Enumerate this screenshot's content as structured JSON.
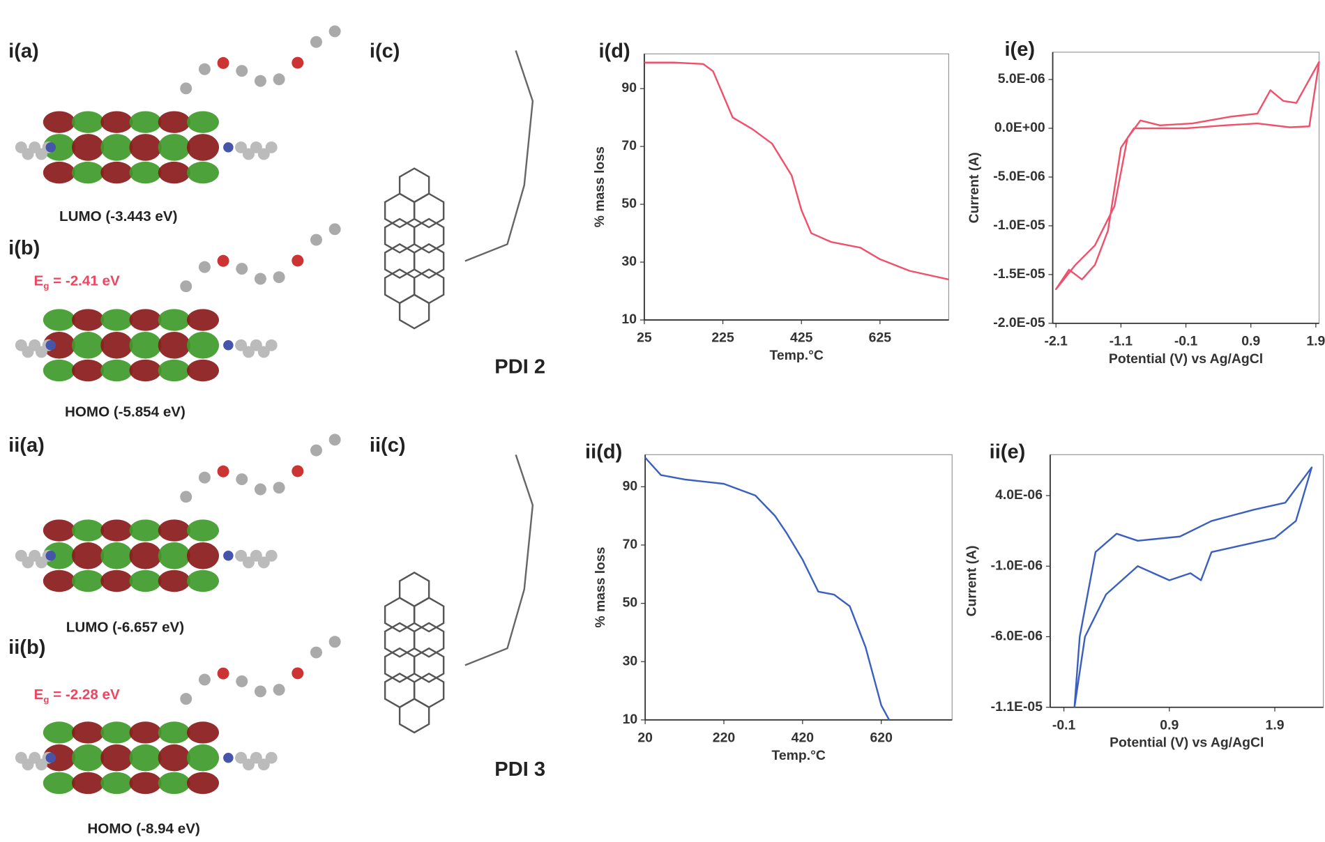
{
  "panels": {
    "ia": "i(a)",
    "ib": "i(b)",
    "ic": "i(c)",
    "iia": "ii(a)",
    "iib": "ii(b)",
    "iic": "ii(c)",
    "i_lumo": "LUMO (-3.443 eV)",
    "i_homo": "HOMO (-5.854 eV)",
    "ii_lumo": "LUMO (-6.657 eV)",
    "ii_homo": "HOMO (-8.94 eV)",
    "i_eg": {
      "symbol": "E",
      "sub": "g",
      "text": " = -2.41 eV"
    },
    "ii_eg": {
      "symbol": "E",
      "sub": "g",
      "text": " = -2.28 eV"
    },
    "pdi2": "PDI 2",
    "pdi3": "PDI 3"
  },
  "chart_data": [
    {
      "type": "line",
      "title": "i(d)",
      "x_label": "Temp.°C",
      "y_label": "% mass loss",
      "xlim": [
        25,
        800
      ],
      "xticks": [
        25,
        225,
        425,
        625
      ],
      "ylim": [
        10,
        102
      ],
      "yticks": [
        10,
        30,
        50,
        70,
        90
      ],
      "series": [
        {
          "color": "#f0506a",
          "x": [
            25,
            100,
            175,
            200,
            225,
            250,
            300,
            350,
            400,
            425,
            450,
            500,
            575,
            625,
            700,
            800
          ],
          "values": [
            99,
            99,
            98.5,
            96,
            88,
            80,
            76,
            71,
            60,
            48,
            40,
            37,
            35,
            31,
            27,
            24
          ]
        }
      ]
    },
    {
      "type": "line",
      "title": "i(e)",
      "x_label": "Potential (V) vs Ag/AgCl",
      "y_label": "Current (A)",
      "xlim": [
        -2.15,
        1.95
      ],
      "xticks": [
        -2.1,
        -1.1,
        -0.1,
        0.9,
        1.9
      ],
      "ylim": [
        -2e-05,
        7.8e-06
      ],
      "yticks": [
        {
          "value": 5e-06,
          "label": "5.0E-06"
        },
        {
          "value": 0,
          "label": "0.0E+00"
        },
        {
          "value": -5e-06,
          "label": "-5.0E-06"
        },
        {
          "value": -1e-05,
          "label": "-1.0E-05"
        },
        {
          "value": -1.5e-05,
          "label": "-1.5E-05"
        },
        {
          "value": -2e-05,
          "label": "-2.0E-05"
        }
      ],
      "series": [
        {
          "color": "#f0506a",
          "x": [
            -0.1,
            0.5,
            1.0,
            1.5,
            1.8,
            1.95,
            1.6,
            1.4,
            1.2,
            1.0,
            0.6,
            0,
            -0.5,
            -0.8,
            -1.0,
            -1.2,
            -1.5,
            -1.8,
            -2.1,
            -1.9,
            -1.7,
            -1.5,
            -1.3,
            -1.1,
            -0.9,
            -0.1
          ],
          "values": [
            0,
            3e-07,
            5e-07,
            1e-07,
            2e-07,
            6.8e-06,
            2.6e-06,
            2.8e-06,
            3.9e-06,
            1.5e-06,
            1.2e-06,
            5e-07,
            3e-07,
            8e-07,
            -1e-06,
            -8e-06,
            -1.2e-05,
            -1.4e-05,
            -1.65e-05,
            -1.45e-05,
            -1.55e-05,
            -1.4e-05,
            -1.05e-05,
            -2e-06,
            0,
            0
          ]
        }
      ]
    },
    {
      "type": "line",
      "title": "ii(d)",
      "x_label": "Temp.°C",
      "y_label": "% mass loss",
      "xlim": [
        20,
        800
      ],
      "xticks": [
        20,
        220,
        420,
        620
      ],
      "ylim": [
        10,
        101
      ],
      "yticks": [
        10,
        30,
        50,
        70,
        90
      ],
      "series": [
        {
          "color": "#3a5fc0",
          "x": [
            20,
            60,
            120,
            220,
            300,
            350,
            380,
            420,
            460,
            500,
            540,
            580,
            620,
            640
          ],
          "values": [
            100,
            94,
            92.5,
            91,
            87,
            80,
            74,
            65,
            54,
            53,
            49,
            35,
            15,
            10
          ]
        }
      ]
    },
    {
      "type": "line",
      "title": "ii(e)",
      "x_label": "Potential (V) vs Ag/AgCl",
      "y_label": "Current (A)",
      "xlim": [
        -0.23,
        2.36
      ],
      "xticks": [
        -0.1,
        0.9,
        1.9
      ],
      "ylim": [
        -1.1e-05,
        6.9e-06
      ],
      "yticks": [
        {
          "value": 4e-06,
          "label": "4.0E-06"
        },
        {
          "value": -1e-06,
          "label": "-1.0E-06"
        },
        {
          "value": -6e-06,
          "label": "-6.0E-06"
        },
        {
          "value": -1.1e-05,
          "label": "-1.1E-05"
        }
      ],
      "series": [
        {
          "color": "#3a5fc0",
          "x": [
            0,
            0.1,
            0.3,
            0.6,
            0.9,
            1.1,
            1.2,
            1.3,
            1.6,
            1.9,
            2.1,
            2.25,
            2.0,
            1.7,
            1.5,
            1.3,
            1.0,
            0.6,
            0.4,
            0.2,
            0.05,
            0
          ],
          "values": [
            -1.1e-05,
            -6e-06,
            -3e-06,
            -1e-06,
            -2e-06,
            -1.5e-06,
            -2e-06,
            0,
            5e-07,
            1e-06,
            2.2e-06,
            6e-06,
            3.5e-06,
            3e-06,
            2.6e-06,
            2.2e-06,
            1.1e-06,
            8e-07,
            1.3e-06,
            0,
            -6e-06,
            -1.1e-05
          ]
        }
      ]
    }
  ]
}
